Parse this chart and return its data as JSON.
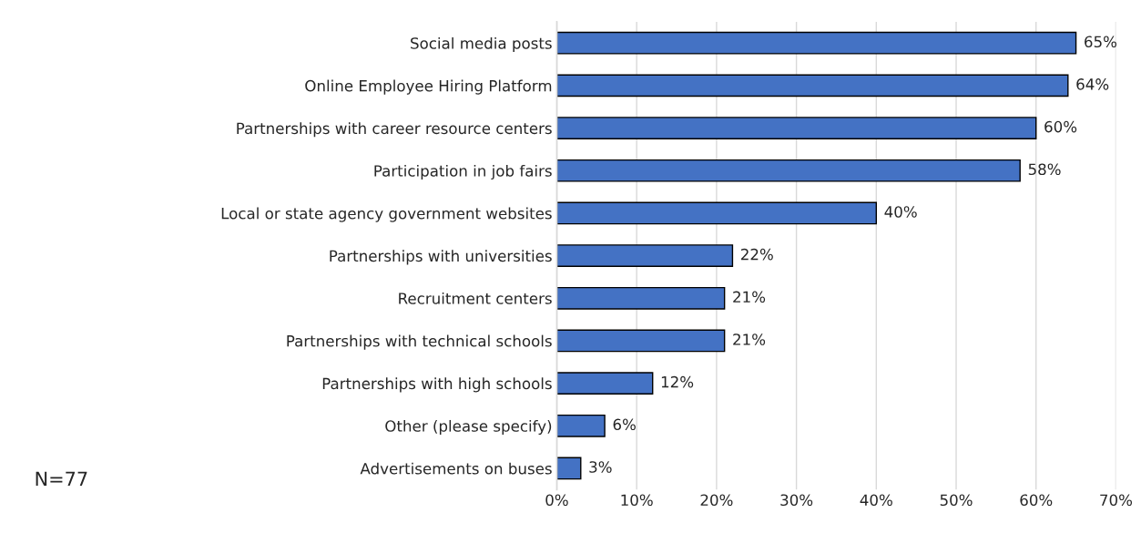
{
  "chart_data": {
    "type": "bar",
    "orientation": "horizontal",
    "categories": [
      "Social media posts",
      "Online Employee Hiring Platform",
      "Partnerships with career resource centers",
      "Participation in job fairs",
      "Local or state agency government websites",
      "Partnerships with universities",
      "Recruitment centers",
      "Partnerships with technical schools",
      "Partnerships with high schools",
      "Other (please specify)",
      "Advertisements on buses"
    ],
    "values": [
      65,
      64,
      60,
      58,
      40,
      22,
      21,
      21,
      12,
      6,
      3
    ],
    "value_labels": [
      "65%",
      "64%",
      "60%",
      "58%",
      "40%",
      "22%",
      "21%",
      "21%",
      "12%",
      "6%",
      "3%"
    ],
    "color": "#4472c4",
    "xlim": [
      0,
      70
    ],
    "xticks": [
      {
        "value": 0,
        "label": "0%"
      },
      {
        "value": 10,
        "label": "10%"
      },
      {
        "value": 20,
        "label": "20%"
      },
      {
        "value": 30,
        "label": "30%"
      },
      {
        "value": 40,
        "label": "40%"
      },
      {
        "value": 50,
        "label": "50%"
      },
      {
        "value": 60,
        "label": "60%"
      },
      {
        "value": 70,
        "label": "70%"
      }
    ],
    "grid": "x",
    "annotations": [
      "N=77"
    ]
  }
}
